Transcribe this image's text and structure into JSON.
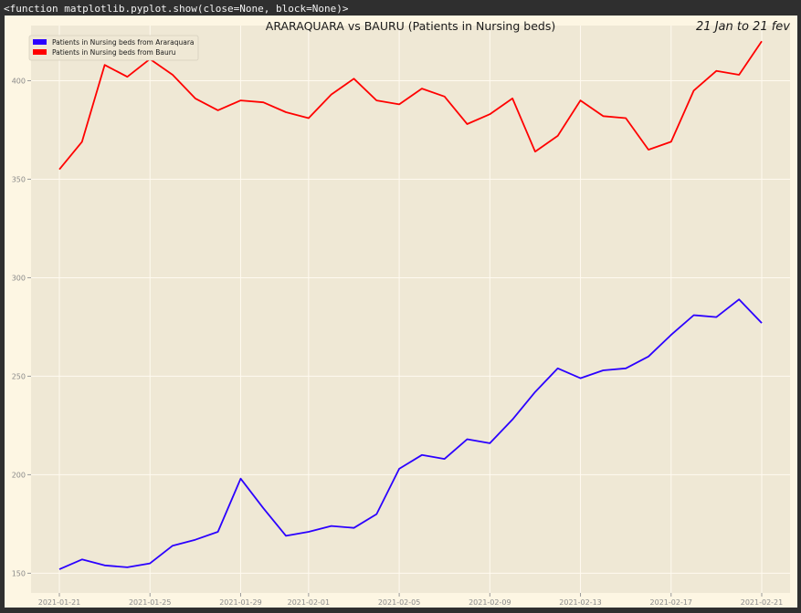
{
  "output": {
    "repr_text": "<function matplotlib.pyplot.show(close=None, block=None)>"
  },
  "colors": {
    "figure_bg": "#fdf6e3",
    "axes_bg": "#efe8d5",
    "grid": "#fffaf0",
    "tick_text": "#8a8a8a",
    "series_araraquara": "#2b00ff",
    "series_bauru": "#ff0000"
  },
  "chart_data": {
    "type": "line",
    "title": "ARARAQUARA vs BAURU (Patients in Nursing beds)",
    "title_right": "21 Jan to 21 fev",
    "xlabel": "",
    "ylabel": "",
    "grid": true,
    "legend_position": "upper-left",
    "x": [
      "2021-01-21",
      "2021-01-22",
      "2021-01-23",
      "2021-01-24",
      "2021-01-25",
      "2021-01-26",
      "2021-01-27",
      "2021-01-28",
      "2021-01-29",
      "2021-01-30",
      "2021-01-31",
      "2021-02-01",
      "2021-02-02",
      "2021-02-03",
      "2021-02-04",
      "2021-02-05",
      "2021-02-06",
      "2021-02-07",
      "2021-02-08",
      "2021-02-09",
      "2021-02-10",
      "2021-02-11",
      "2021-02-12",
      "2021-02-13",
      "2021-02-14",
      "2021-02-15",
      "2021-02-16",
      "2021-02-17",
      "2021-02-18",
      "2021-02-19",
      "2021-02-20",
      "2021-02-21"
    ],
    "x_ticks": [
      "2021-01-21",
      "2021-01-25",
      "2021-01-29",
      "2021-02-01",
      "2021-02-05",
      "2021-02-09",
      "2021-02-13",
      "2021-02-17",
      "2021-02-21"
    ],
    "y_ticks": [
      150,
      200,
      250,
      300,
      350,
      400
    ],
    "ylim": [
      140,
      428
    ],
    "series": [
      {
        "name": "Patients in Nursing beds from Araraquara",
        "color": "#2b00ff",
        "values": [
          152,
          157,
          154,
          153,
          155,
          164,
          167,
          171,
          198,
          183,
          169,
          171,
          174,
          173,
          180,
          203,
          210,
          208,
          218,
          216,
          228,
          242,
          254,
          249,
          253,
          254,
          260,
          271,
          281,
          280,
          289,
          277
        ]
      },
      {
        "name": "Patients in Nursing beds from Bauru",
        "color": "#ff0000",
        "values": [
          355,
          369,
          408,
          402,
          411,
          403,
          391,
          385,
          390,
          389,
          384,
          381,
          393,
          401,
          390,
          388,
          396,
          392,
          378,
          383,
          391,
          364,
          372,
          390,
          382,
          381,
          365,
          369,
          395,
          405,
          403,
          420
        ]
      }
    ]
  }
}
